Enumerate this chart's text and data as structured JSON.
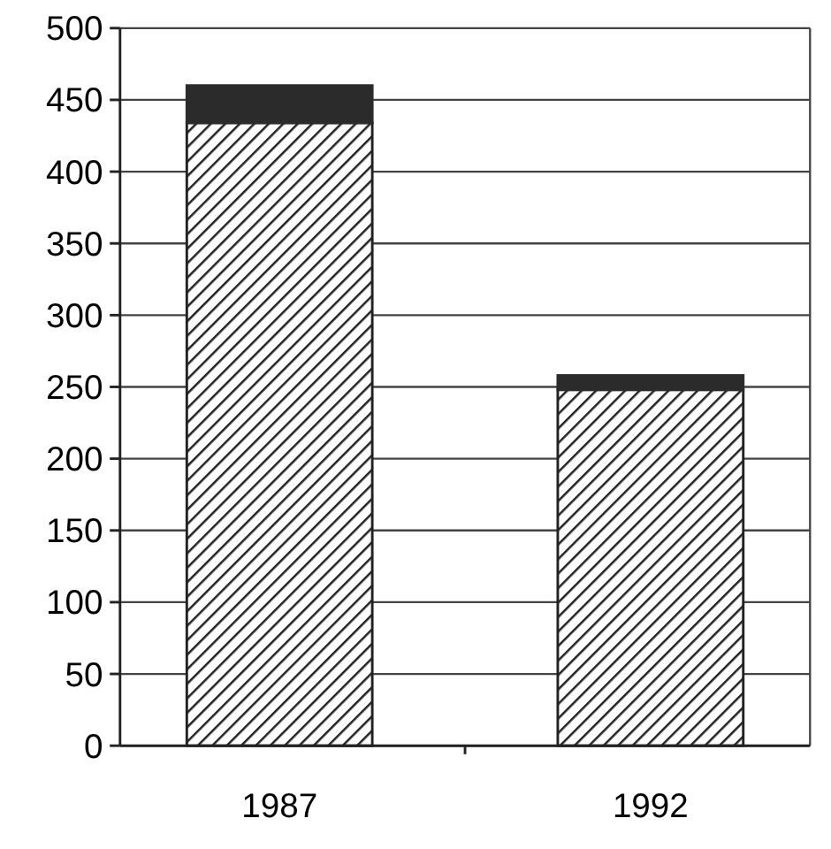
{
  "chart_data": {
    "type": "bar",
    "categories": [
      "1987",
      "1992"
    ],
    "stacked": true,
    "series": [
      {
        "color": "#222222",
        "values": [
          434,
          248
        ]
      },
      {
        "color": "#2b2b2b",
        "values": [
          26,
          10
        ]
      }
    ],
    "ylim": [
      0,
      500
    ],
    "yticks": [
      0,
      50,
      100,
      150,
      200,
      250,
      300,
      350,
      400,
      450,
      500
    ],
    "grid": "y"
  }
}
